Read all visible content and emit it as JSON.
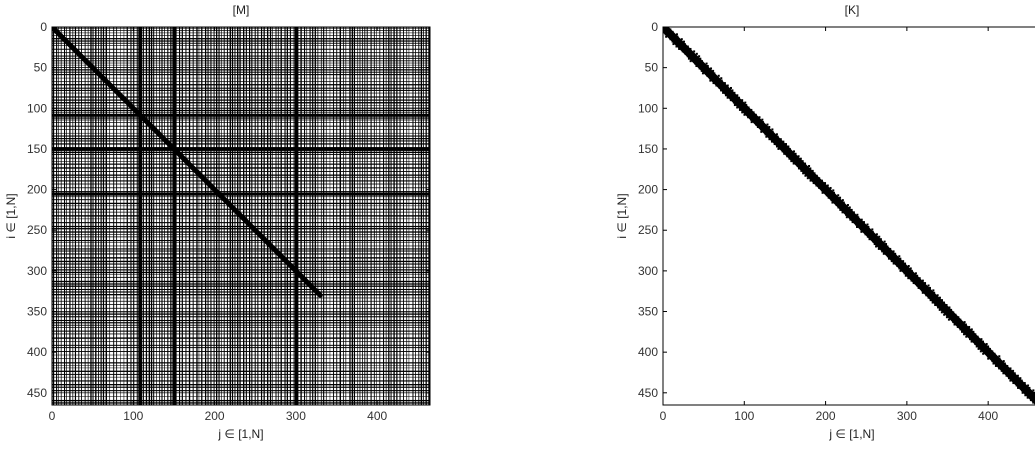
{
  "chart_data": [
    {
      "type": "heatmap",
      "subtype": "sparsity-pattern",
      "title": "[M]",
      "xlabel": "j ∈ [1,N]",
      "ylabel": "i ∈ [1,N]",
      "xlim": [
        0,
        465
      ],
      "ylim": [
        465,
        0
      ],
      "y_axis_inverted": true,
      "xticks": [
        0,
        100,
        200,
        300,
        400
      ],
      "yticks": [
        0,
        50,
        100,
        150,
        200,
        250,
        300,
        350,
        400,
        450
      ],
      "grid": false,
      "fill_color": "#000000",
      "background": "#ffffff",
      "pattern": "dense",
      "diagonal_band": {
        "from": [
          0,
          0
        ],
        "to": [
          330,
          330
        ]
      },
      "bold_rows": [
        108,
        150,
        205
      ],
      "bold_cols": [
        108,
        150,
        300
      ]
    },
    {
      "type": "heatmap",
      "subtype": "sparsity-pattern",
      "title": "[K]",
      "xlabel": "j ∈ [1,N]",
      "ylabel": "i ∈ [1,N]",
      "xlim": [
        0,
        465
      ],
      "ylim": [
        465,
        0
      ],
      "y_axis_inverted": true,
      "xticks": [
        0,
        100,
        200,
        300,
        400
      ],
      "yticks": [
        0,
        50,
        100,
        150,
        200,
        250,
        300,
        350,
        400,
        450
      ],
      "grid": false,
      "fill_color": "#000000",
      "background": "#ffffff",
      "pattern": "banded",
      "diagonal_band": {
        "from": [
          0,
          0
        ],
        "to": [
          465,
          465
        ]
      },
      "band_half_width": 7
    }
  ]
}
